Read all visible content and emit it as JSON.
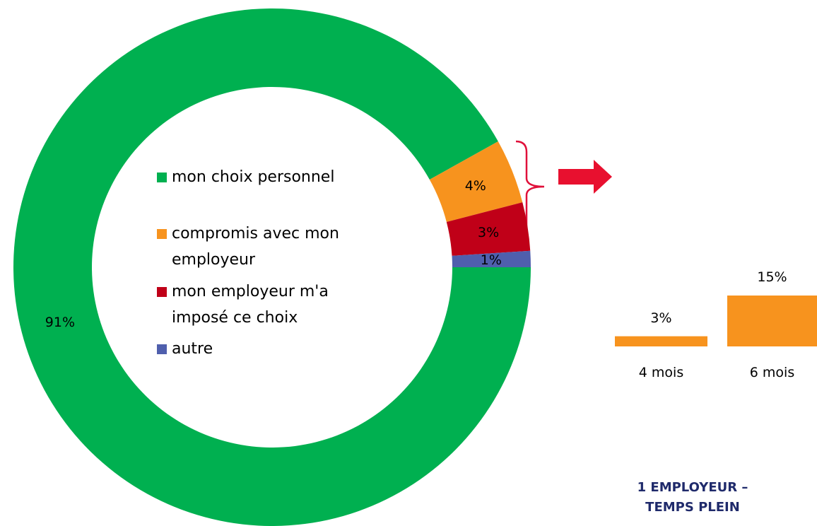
{
  "chart_data": [
    {
      "type": "donut",
      "categories": [
        "mon choix personnel",
        "compromis avec mon employeur",
        "mon employeur m'a imposé ce choix",
        "autre"
      ],
      "values": [
        91,
        4,
        3,
        1
      ],
      "value_labels": [
        "91%",
        "4%",
        "3%",
        "1%"
      ],
      "colors": [
        "#00b050",
        "#f7931e",
        "#c00018",
        "#4f5fad"
      ]
    },
    {
      "type": "bar",
      "categories": [
        "4 mois",
        "6 mois"
      ],
      "values": [
        3,
        15
      ],
      "value_labels": [
        "3%",
        "15%"
      ],
      "color": "#f7931e",
      "annotation": "1 EMPLOYEUR – TEMPS PLEIN"
    }
  ]
}
